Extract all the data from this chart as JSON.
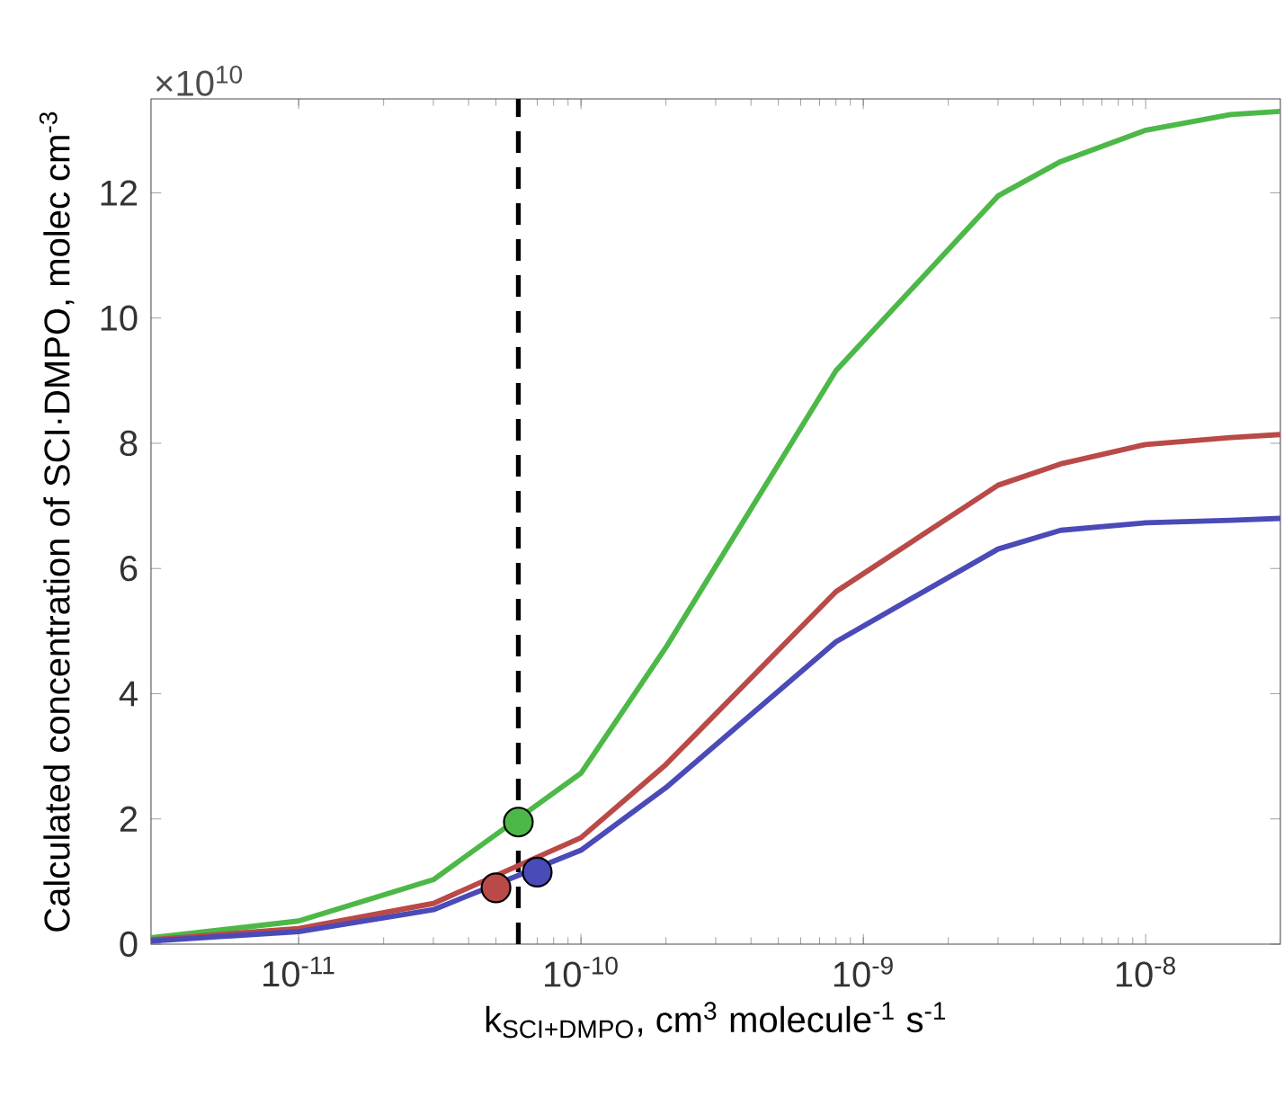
{
  "chart_data": {
    "type": "line",
    "xlabel": "k$_{SCI+DMPO}$, cm$^{3}$ molecule$^{-1}$ s$^{-1}$",
    "ylabel": "Calculated concentration of SCI·DMPO, molec cm$^{-3}$",
    "annotations": [
      "×10$^{10}$"
    ],
    "log": "x",
    "grid": false,
    "xlim": [
      3e-12,
      3e-08
    ],
    "xticks": [
      {
        "value": 1e-11,
        "label": "10$^{-11}$"
      },
      {
        "value": 1e-10,
        "label": "10$^{-10}$"
      },
      {
        "value": 1e-09,
        "label": "10$^{-9}$"
      },
      {
        "value": 1e-08,
        "label": "10$^{-8}$"
      }
    ],
    "ylim": [
      0,
      13.5
    ],
    "yticks": [
      0,
      2,
      4,
      6,
      8,
      10,
      12
    ],
    "ref_lines": [
      {
        "axis": "x",
        "value": 6e-11,
        "color": "#000000",
        "line_style": "dashed"
      }
    ],
    "series": [
      {
        "color": "#4cb848",
        "x": [
          3e-12,
          1e-11,
          3e-11,
          1e-10,
          2e-10,
          8e-10,
          3e-09,
          5e-09,
          1e-08,
          2e-08,
          3e-08
        ],
        "values": [
          0.1,
          0.37,
          1.03,
          2.73,
          4.74,
          9.16,
          11.95,
          12.5,
          13.0,
          13.25,
          13.3
        ]
      },
      {
        "color": "#b94a48",
        "x": [
          3e-12,
          1e-11,
          3e-11,
          1e-10,
          2e-10,
          8e-10,
          3e-09,
          5e-09,
          1e-08,
          2e-08,
          3e-08
        ],
        "values": [
          0.07,
          0.25,
          0.65,
          1.7,
          2.87,
          5.63,
          7.33,
          7.67,
          7.98,
          8.09,
          8.14
        ]
      },
      {
        "color": "#4a4ab8",
        "x": [
          3e-12,
          1e-11,
          3e-11,
          1e-10,
          2e-10,
          8e-10,
          3e-09,
          5e-09,
          1e-08,
          2e-08,
          3e-08
        ],
        "values": [
          0.05,
          0.2,
          0.55,
          1.5,
          2.5,
          4.83,
          6.31,
          6.61,
          6.73,
          6.77,
          6.8
        ]
      },
      {
        "type": "scatter",
        "marker": "circle",
        "x": [
          6e-11,
          5e-11,
          7e-11
        ],
        "values": [
          1.95,
          0.9,
          1.15
        ],
        "colors": [
          "#4cb848",
          "#b94a48",
          "#4a4ab8"
        ]
      }
    ]
  }
}
